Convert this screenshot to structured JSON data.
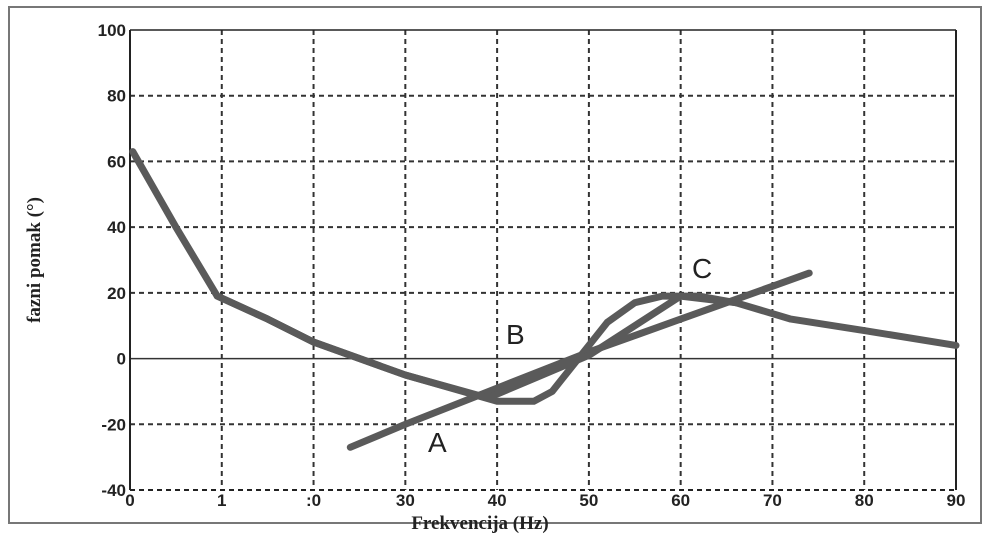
{
  "chart_data": {
    "type": "line",
    "title": "",
    "xlabel": "Frekvencija (Hz)",
    "ylabel": "fazni pomak (°)",
    "x_ticks": [
      "0",
      "1",
      ":0",
      "30",
      "40",
      "50",
      "60",
      "70",
      "80",
      "90"
    ],
    "y_ticks": [
      "100",
      "80",
      "60",
      "40",
      "20",
      "0",
      "-20",
      "-40"
    ],
    "xlim": [
      0,
      90
    ],
    "ylim": [
      -40,
      100
    ],
    "grid": true,
    "series": [
      {
        "name": "A",
        "x": [
          24,
          30,
          40,
          50,
          60,
          70,
          74
        ],
        "y": [
          -27,
          -20,
          -9,
          2,
          12,
          22,
          26
        ]
      },
      {
        "name": "B",
        "x": [
          0.3,
          5,
          9.5,
          15,
          20,
          30,
          40,
          44,
          46,
          48,
          50,
          52,
          55,
          58,
          62,
          64,
          66
        ],
        "y": [
          63,
          40,
          19,
          12,
          5,
          -5,
          -13,
          -13,
          -10,
          -3,
          4,
          11,
          17,
          19,
          19,
          18,
          17
        ]
      },
      {
        "name": "C",
        "x": [
          9.5,
          15,
          20,
          30,
          39,
          50,
          60,
          66,
          72,
          80,
          90
        ],
        "y": [
          19,
          12,
          5,
          -5,
          -12,
          1,
          19,
          17,
          12,
          8.5,
          4
        ]
      }
    ],
    "labels": [
      "A",
      "B",
      "C"
    ]
  },
  "colors": {
    "curve": "#5a5a5a",
    "grid": "#333333",
    "text": "#222222"
  }
}
